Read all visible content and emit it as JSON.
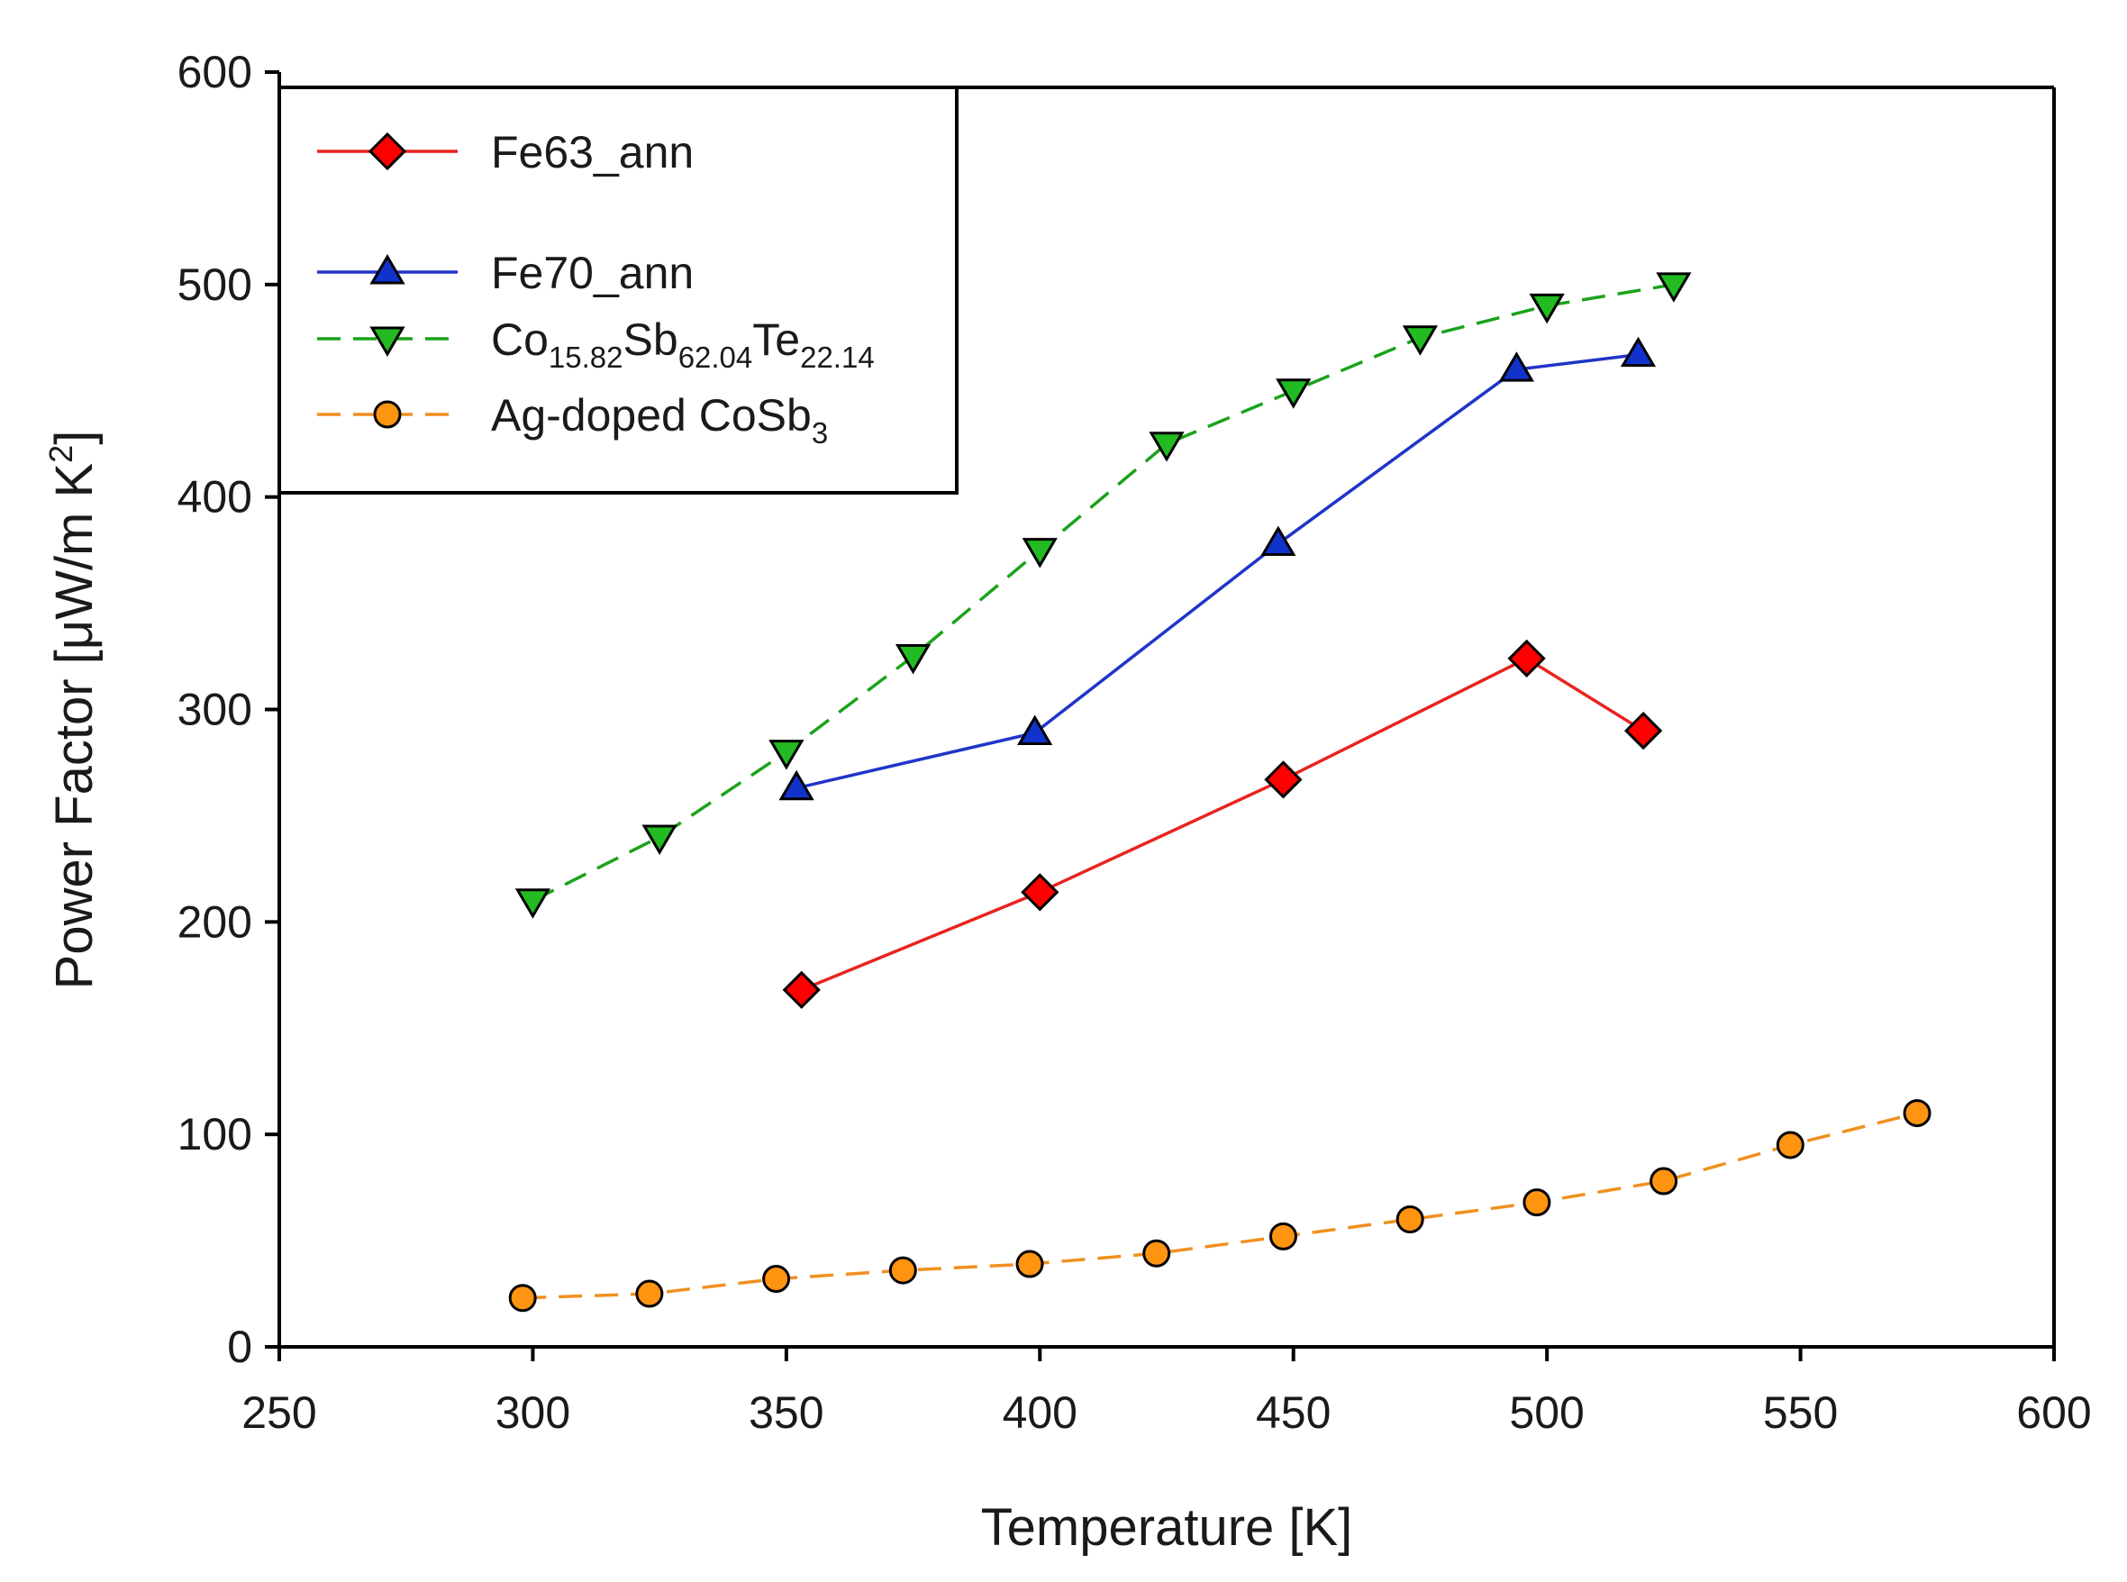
{
  "chart_data": {
    "type": "line",
    "title": "",
    "xlabel": "Temperature [K]",
    "ylabel": "Power Factor [μW/m K2]",
    "ylabel_parts": {
      "main": "Power Factor [μW/m K",
      "sup": "2",
      "close": "]"
    },
    "xlim": [
      250,
      600
    ],
    "ylim": [
      0,
      600
    ],
    "xticks": [
      250,
      300,
      350,
      400,
      450,
      500,
      550,
      600
    ],
    "yticks": [
      0,
      100,
      200,
      300,
      400,
      500,
      600
    ],
    "grid": false,
    "legend_position": "top-left",
    "series": [
      {
        "name": "Fe63_ann",
        "label_parts": [
          {
            "t": "Fe63_ann",
            "s": ""
          }
        ],
        "color": "#e8231f",
        "marker": "diamond",
        "marker_fill": "#ff0000",
        "dash": "solid",
        "x": [
          353,
          400,
          448,
          496,
          519
        ],
        "y": [
          168,
          214,
          267,
          324,
          290
        ]
      },
      {
        "name": "Fe70_ann",
        "label_parts": [
          {
            "t": "Fe70_ann",
            "s": ""
          }
        ],
        "color": "#1f35c8",
        "marker": "triangle-up",
        "marker_fill": "#1133cc",
        "dash": "solid",
        "x": [
          352,
          399,
          447,
          494,
          518
        ],
        "y": [
          263,
          289,
          378,
          460,
          467
        ]
      },
      {
        "name": "Co15.82Sb62.04Te22.14",
        "label_parts": [
          {
            "t": "Co",
            "s": "15.82"
          },
          {
            "t": "Sb",
            "s": "62.04"
          },
          {
            "t": "Te",
            "s": "22.14"
          }
        ],
        "color": "#1aa31a",
        "marker": "triangle-down",
        "marker_fill": "#22bb22",
        "dash": "dashed",
        "x": [
          300,
          325,
          350,
          375,
          400,
          425,
          450,
          475,
          500,
          525
        ],
        "y": [
          210,
          240,
          280,
          325,
          375,
          425,
          450,
          475,
          490,
          500
        ]
      },
      {
        "name": "Ag-doped CoSb3",
        "label_parts": [
          {
            "t": "Ag-doped CoSb",
            "s": "3"
          }
        ],
        "color": "#f09020",
        "marker": "circle",
        "marker_fill": "#ff9411",
        "dash": "dashed",
        "x": [
          298,
          323,
          348,
          373,
          398,
          423,
          448,
          473,
          498,
          523,
          548,
          573
        ],
        "y": [
          23,
          25,
          32,
          36,
          39,
          44,
          52,
          60,
          68,
          78,
          95,
          110
        ]
      }
    ]
  }
}
